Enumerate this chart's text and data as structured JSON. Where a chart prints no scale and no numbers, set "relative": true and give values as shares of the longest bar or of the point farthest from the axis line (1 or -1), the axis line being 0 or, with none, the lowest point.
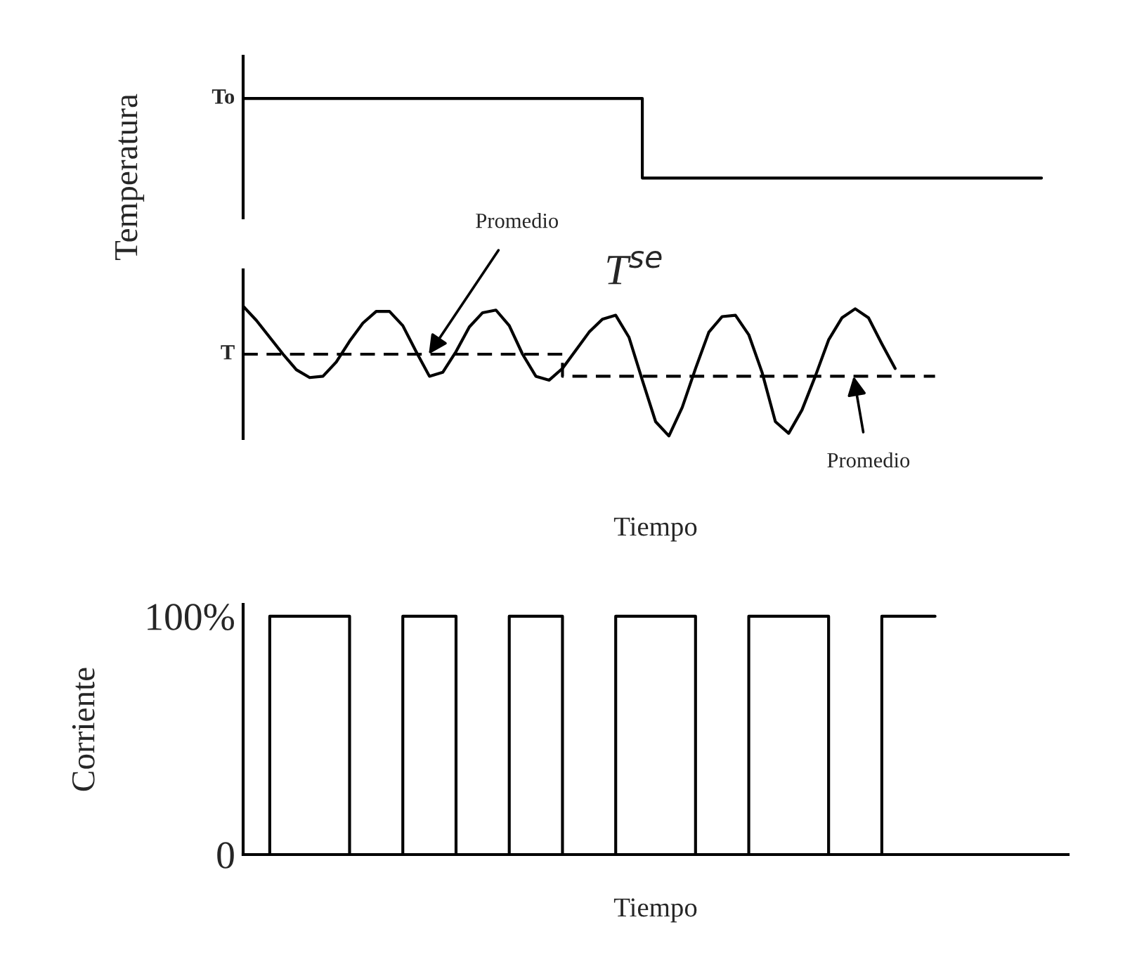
{
  "chart_data": [
    {
      "type": "step",
      "relative": true,
      "tick_labels": false,
      "grid": false,
      "legend": false,
      "categories": [
        null,
        null,
        null,
        null,
        null,
        null,
        null,
        null,
        null,
        null,
        null,
        null,
        null,
        null,
        null,
        null,
        null,
        null,
        null,
        null,
        null,
        null,
        null,
        null,
        null,
        null,
        null,
        null,
        null,
        null,
        null,
        null,
        null,
        null,
        null,
        null,
        null,
        null,
        null,
        null,
        null,
        null,
        null,
        null,
        null,
        null,
        null,
        null,
        null,
        null,
        null,
        null,
        null,
        null,
        null,
        null,
        null,
        null,
        null,
        null,
        null
      ],
      "series": [
        {
          "color": "#000000",
          "values": [
            1,
            1,
            1,
            1,
            1,
            1,
            1,
            1,
            1,
            1,
            1,
            1,
            1,
            1,
            1,
            1,
            1,
            1,
            1,
            1,
            1,
            1,
            1,
            1,
            1,
            1,
            1,
            1,
            1,
            1,
            0,
            0,
            0,
            0,
            0,
            0,
            0,
            0,
            0,
            0,
            0,
            0,
            0,
            0,
            0,
            0,
            0,
            0,
            0,
            0,
            0,
            0,
            0,
            0,
            0,
            0,
            0,
            0,
            0,
            0,
            0
          ]
        }
      ],
      "annotations": [
        "To"
      ]
    },
    {
      "type": "line",
      "relative": true,
      "tick_labels": false,
      "grid": false,
      "legend": false,
      "ylabel": "Temperatura",
      "xlabel": "Tiempo",
      "categories": [
        null,
        null,
        null,
        null,
        null,
        null,
        null,
        null,
        null,
        null,
        null,
        null,
        null,
        null,
        null,
        null,
        null,
        null,
        null,
        null,
        null,
        null,
        null,
        null,
        null,
        null,
        null,
        null,
        null,
        null,
        null,
        null,
        null,
        null,
        null,
        null,
        null,
        null,
        null,
        null,
        null,
        null,
        null,
        null,
        null,
        null,
        null,
        null,
        null,
        null,
        null,
        null,
        null
      ],
      "series": [
        {
          "type": "line",
          "color": "#000000",
          "line_style": "solid",
          "values": [
            1.0,
            0.89,
            0.76,
            0.63,
            0.51,
            0.45,
            0.46,
            0.57,
            0.73,
            0.87,
            0.96,
            0.96,
            0.85,
            0.65,
            0.46,
            0.49,
            0.65,
            0.84,
            0.95,
            0.97,
            0.85,
            0.63,
            0.46,
            0.43,
            0.52,
            0.66,
            0.8,
            0.9,
            0.93,
            0.76,
            0.43,
            0.11,
            0,
            0.22,
            0.52,
            0.8,
            0.92,
            0.93,
            0.78,
            0.49,
            0.11,
            0.02,
            0.2,
            0.46,
            0.74,
            0.91,
            0.98,
            0.91,
            0.71,
            0.52,
            null,
            null,
            null
          ]
        },
        {
          "type": "step",
          "color": "#000000",
          "line_style": "dashed",
          "values": [
            0.63,
            0.63,
            0.63,
            0.63,
            0.63,
            0.63,
            0.63,
            0.63,
            0.63,
            0.63,
            0.63,
            0.63,
            0.63,
            0.63,
            0.63,
            0.63,
            0.63,
            0.63,
            0.63,
            0.63,
            0.63,
            0.63,
            0.63,
            0.63,
            0.46,
            0.46,
            0.46,
            0.46,
            0.46,
            0.46,
            0.46,
            0.46,
            0.46,
            0.46,
            0.46,
            0.46,
            0.46,
            0.46,
            0.46,
            0.46,
            0.46,
            0.46,
            0.46,
            0.46,
            0.46,
            0.46,
            0.46,
            0.46,
            0.46,
            0.46,
            0.46,
            0.46,
            0.46
          ]
        }
      ],
      "annotations": [
        "T",
        "Promedio",
        "T$^{se}$",
        "Promedio"
      ]
    },
    {
      "type": "step",
      "tick_labels": "y",
      "grid": false,
      "legend": false,
      "ylabel": "Corriente",
      "xlabel": "Tiempo",
      "ylim": [
        0,
        105
      ],
      "yticks": [
        {
          "value": 0,
          "label": "0"
        },
        {
          "value": 100,
          "label": "100%"
        }
      ],
      "categories": [
        null,
        null,
        null,
        null,
        null,
        null,
        null,
        null,
        null,
        null,
        null,
        null,
        null,
        null,
        null,
        null,
        null,
        null,
        null,
        null,
        null,
        null,
        null,
        null,
        null,
        null,
        null,
        null,
        null,
        null,
        null,
        null,
        null,
        null,
        null,
        null,
        null,
        null,
        null,
        null,
        null,
        null,
        null,
        null,
        null,
        null,
        null,
        null,
        null,
        null,
        null,
        null,
        null
      ],
      "series": [
        {
          "color": "#000000",
          "values": [
            0,
            0,
            100,
            100,
            100,
            100,
            100,
            100,
            0,
            0,
            0,
            0,
            100,
            100,
            100,
            100,
            0,
            0,
            0,
            0,
            100,
            100,
            100,
            100,
            0,
            0,
            0,
            0,
            100,
            100,
            100,
            100,
            100,
            100,
            0,
            0,
            0,
            0,
            100,
            100,
            100,
            100,
            100,
            100,
            0,
            0,
            0,
            0,
            100,
            100,
            100,
            100,
            100
          ]
        }
      ]
    }
  ]
}
